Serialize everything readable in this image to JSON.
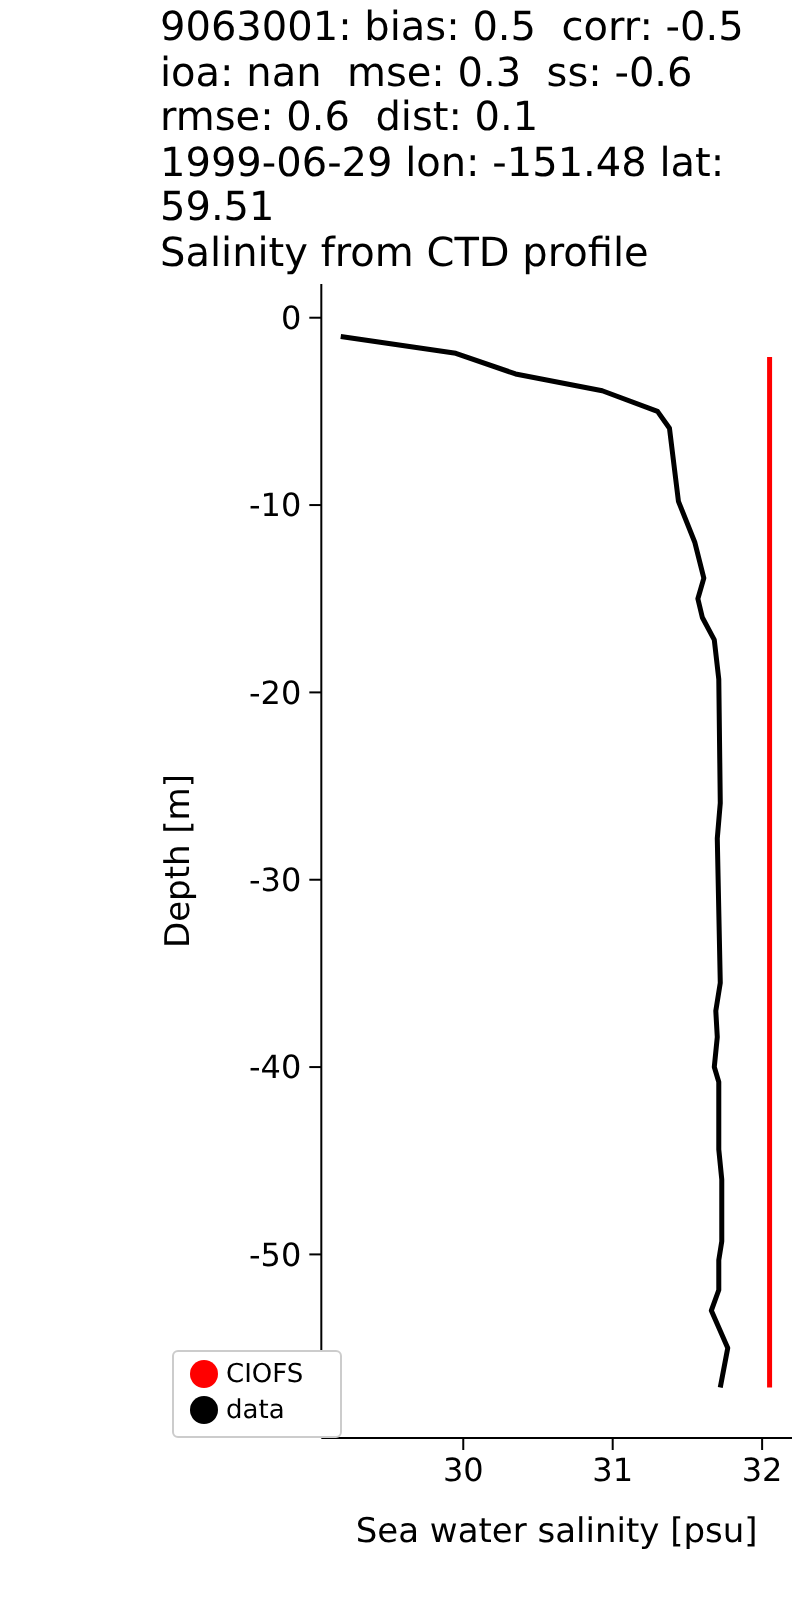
{
  "chart_data": {
    "type": "line",
    "title": "9063001: bias: 0.5  corr: -0.5  ioa: nan  mse: 0.3  ss: -0.6  rmse: 0.6  dist: 0.1\n1999-06-29 lon: -151.48 lat: 59.51\nSalinity from CTD profile",
    "xlabel": "Sea water salinity [psu]",
    "ylabel": "Depth [m]",
    "series": [
      {
        "name": "data",
        "color": "#000000",
        "x": [
          29.18,
          29.95,
          30.35,
          30.93,
          31.3,
          31.38,
          31.44,
          31.55,
          31.61,
          31.57,
          31.6,
          31.68,
          31.71,
          31.72,
          31.7,
          31.72,
          31.69,
          31.7,
          31.68,
          31.71,
          31.71,
          31.73,
          31.73,
          31.71,
          31.71,
          31.66,
          31.77,
          31.72
        ],
        "values": [
          -1.0,
          -1.9,
          -3.0,
          -3.9,
          -5.0,
          -5.9,
          -9.8,
          -12,
          -13.9,
          -15,
          -16,
          -17.2,
          -19.3,
          -25.9,
          -27.8,
          -35.5,
          -37,
          -38.4,
          -40,
          -40.8,
          -44.4,
          -46,
          -49.3,
          -50.3,
          -51.9,
          -53,
          -55,
          -57.1
        ]
      },
      {
        "name": "CIOFS",
        "color": "#ff0000",
        "x": [
          32.05,
          32.05
        ],
        "values": [
          -2.1,
          -57.1
        ]
      }
    ],
    "xlim": [
      29.05,
      32.2
    ],
    "xticks": [
      30,
      31,
      32
    ],
    "ylim": [
      -59.8,
      1.8
    ],
    "yticks": [
      0,
      -10,
      -20,
      -30,
      -40,
      -50
    ],
    "grid": false,
    "legend": "bottom left",
    "marker": "none",
    "line_style": "solid"
  }
}
